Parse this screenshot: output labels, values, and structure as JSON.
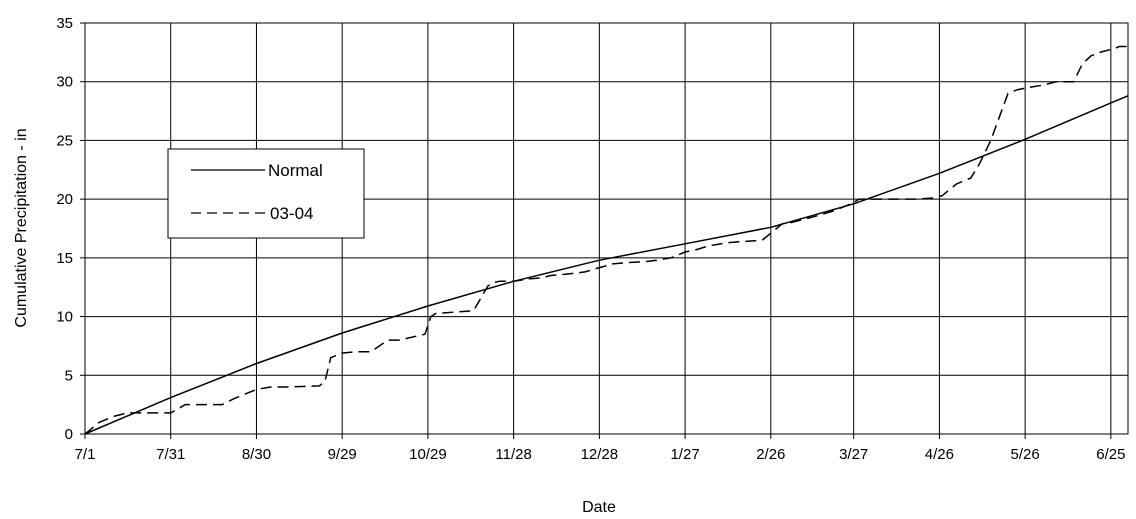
{
  "chart_data": {
    "type": "line",
    "xlabel": "Date",
    "ylabel": "Cumulative Precipitation - in",
    "x_tick_labels": [
      "7/1",
      "7/31",
      "8/30",
      "9/29",
      "10/29",
      "11/28",
      "12/28",
      "1/27",
      "2/26",
      "3/27",
      "4/26",
      "5/26",
      "6/25"
    ],
    "x_tick_days": [
      0,
      30,
      60,
      90,
      120,
      150,
      180,
      210,
      240,
      269,
      299,
      329,
      359
    ],
    "x_range_days": [
      0,
      365
    ],
    "ylim": [
      0,
      35
    ],
    "y_ticks": [
      0,
      5,
      10,
      15,
      20,
      25,
      30,
      35
    ],
    "grid": true,
    "legend_position": "left-center",
    "series": [
      {
        "name": "Normal",
        "style": "solid",
        "color": "#000000",
        "days": [
          0,
          30,
          60,
          90,
          120,
          150,
          180,
          210,
          240,
          269,
          299,
          329,
          359,
          365
        ],
        "values": [
          0,
          3.1,
          6.0,
          8.6,
          10.9,
          13.0,
          14.8,
          16.2,
          17.6,
          19.6,
          22.2,
          25.1,
          28.2,
          28.8
        ]
      },
      {
        "name": "03-04",
        "style": "dashed",
        "color": "#000000",
        "days": [
          0,
          5,
          10,
          15,
          30,
          33,
          35,
          48,
          52,
          60,
          65,
          70,
          82,
          84,
          86,
          90,
          95,
          100,
          106,
          110,
          119,
          121,
          123,
          125,
          136,
          140,
          141,
          143,
          145,
          150,
          155,
          160,
          163,
          168,
          175,
          179,
          182,
          185,
          190,
          197,
          200,
          205,
          210,
          214,
          218,
          225,
          237,
          240,
          244,
          247,
          255,
          262,
          265,
          268,
          271,
          280,
          285,
          291,
          297,
          300,
          305,
          307,
          310,
          313,
          317,
          320,
          323,
          326,
          330,
          335,
          340,
          346,
          349,
          352,
          355,
          360,
          362,
          365
        ],
        "values": [
          0,
          1.0,
          1.5,
          1.8,
          1.8,
          2.2,
          2.5,
          2.5,
          3.0,
          3.8,
          4.0,
          4.0,
          4.1,
          4.5,
          6.5,
          6.9,
          7.0,
          7.0,
          8.0,
          8.0,
          8.5,
          10.0,
          10.3,
          10.3,
          10.5,
          12.2,
          12.6,
          12.9,
          13.0,
          13.0,
          13.2,
          13.3,
          13.5,
          13.6,
          13.8,
          14.1,
          14.3,
          14.5,
          14.6,
          14.7,
          14.8,
          15.0,
          15.5,
          15.7,
          16.0,
          16.3,
          16.5,
          17.1,
          17.9,
          18.0,
          18.5,
          19.0,
          19.3,
          19.6,
          20.0,
          20.0,
          20.0,
          20.0,
          20.1,
          20.3,
          21.3,
          21.5,
          21.8,
          23.0,
          25.0,
          27.0,
          29.0,
          29.3,
          29.5,
          29.7,
          30.0,
          30.0,
          31.5,
          32.2,
          32.5,
          32.8,
          33.0,
          33.0
        ]
      }
    ]
  }
}
